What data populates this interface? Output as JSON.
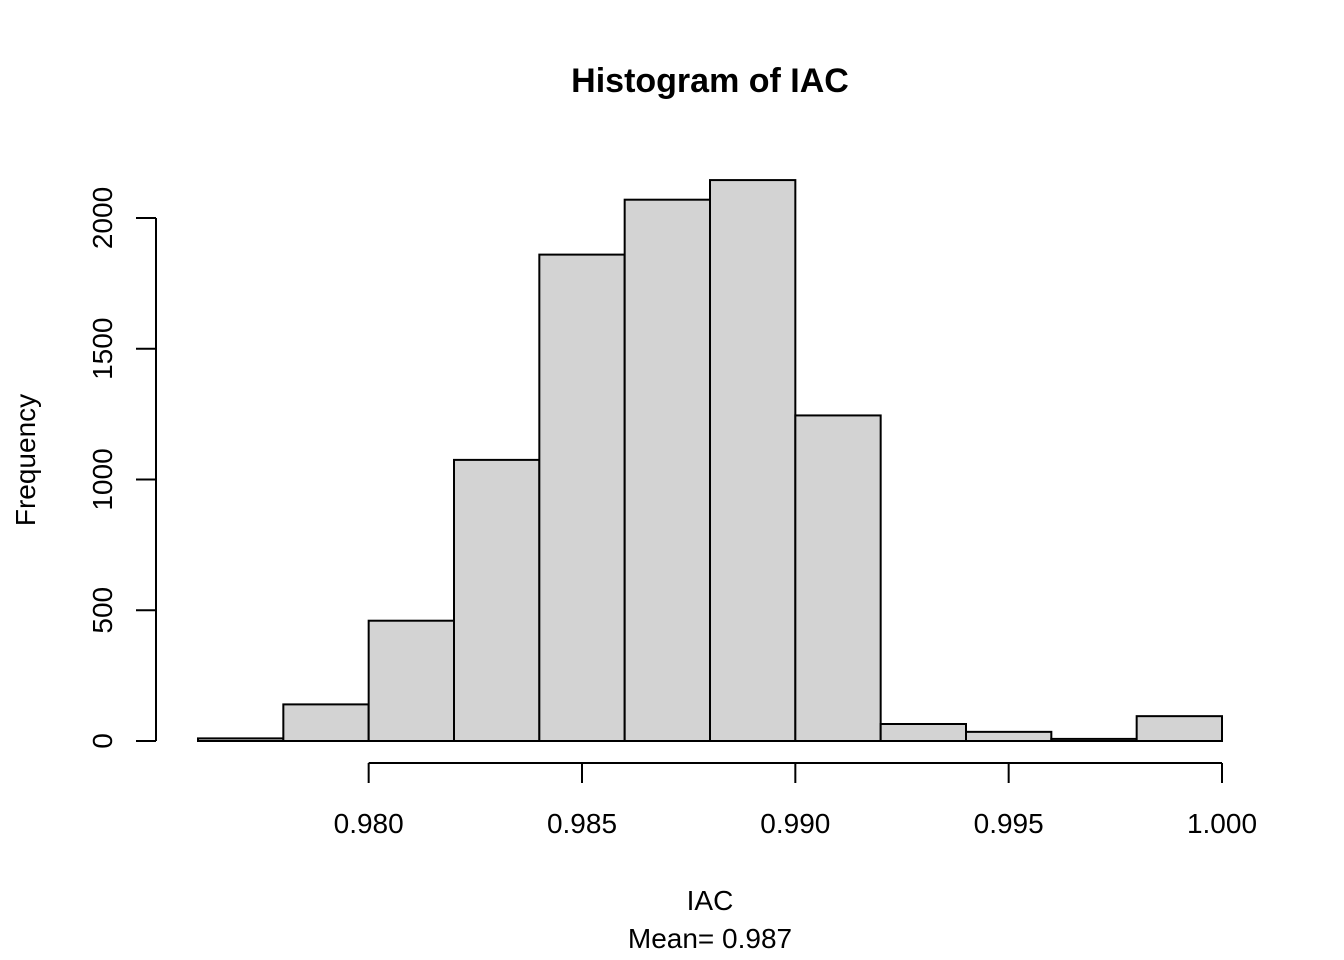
{
  "chart_data": {
    "type": "bar",
    "title": "Histogram of IAC",
    "xlabel": "IAC",
    "subtitle": "Mean= 0.987",
    "ylabel": "Frequency",
    "bins": [
      {
        "start": 0.976,
        "end": 0.978,
        "count": 10
      },
      {
        "start": 0.978,
        "end": 0.98,
        "count": 140
      },
      {
        "start": 0.98,
        "end": 0.982,
        "count": 460
      },
      {
        "start": 0.982,
        "end": 0.984,
        "count": 1075
      },
      {
        "start": 0.984,
        "end": 0.986,
        "count": 1860
      },
      {
        "start": 0.986,
        "end": 0.988,
        "count": 2070
      },
      {
        "start": 0.988,
        "end": 0.99,
        "count": 2145
      },
      {
        "start": 0.99,
        "end": 0.992,
        "count": 1245
      },
      {
        "start": 0.992,
        "end": 0.994,
        "count": 65
      },
      {
        "start": 0.994,
        "end": 0.996,
        "count": 35
      },
      {
        "start": 0.996,
        "end": 0.998,
        "count": 8
      },
      {
        "start": 0.998,
        "end": 1.0,
        "count": 95
      }
    ],
    "x_ticks": [
      0.98,
      0.985,
      0.99,
      0.995,
      1.0
    ],
    "x_tick_labels": [
      "0.980",
      "0.985",
      "0.990",
      "0.995",
      "1.000"
    ],
    "y_ticks": [
      0,
      500,
      1000,
      1500,
      2000
    ],
    "y_tick_labels": [
      "0",
      "500",
      "1000",
      "1500",
      "2000"
    ],
    "grid": false,
    "legend": "none"
  }
}
